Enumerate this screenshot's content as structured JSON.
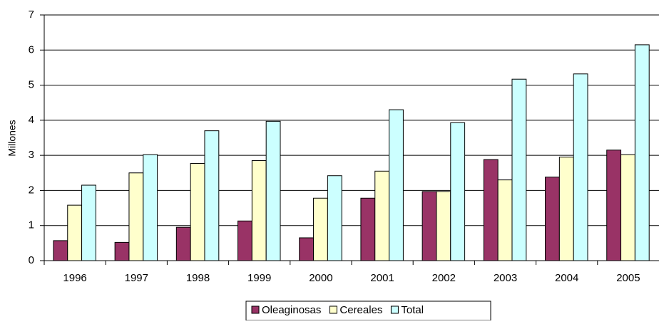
{
  "chart_data": {
    "type": "bar",
    "y_label": "Millones",
    "categories": [
      "1996",
      "1997",
      "1998",
      "1999",
      "2000",
      "2001",
      "2002",
      "2003",
      "2004",
      "2005"
    ],
    "series": [
      {
        "name": "Oleaginosas",
        "color": "#993366",
        "values": [
          0.57,
          0.52,
          0.95,
          1.13,
          0.65,
          1.78,
          1.97,
          2.88,
          2.38,
          3.15
        ]
      },
      {
        "name": "Cereales",
        "color": "#ffffcc",
        "values": [
          1.58,
          2.5,
          2.77,
          2.85,
          1.78,
          2.55,
          1.97,
          2.3,
          2.95,
          3.02
        ]
      },
      {
        "name": "Total",
        "color": "#ccffff",
        "values": [
          2.15,
          3.02,
          3.7,
          3.97,
          2.42,
          4.3,
          3.93,
          5.17,
          5.32,
          6.15
        ]
      }
    ],
    "ylim": [
      0,
      7
    ],
    "yticks": [
      0,
      1,
      2,
      3,
      4,
      5,
      6,
      7
    ],
    "grid": true,
    "legend": "bottom"
  }
}
